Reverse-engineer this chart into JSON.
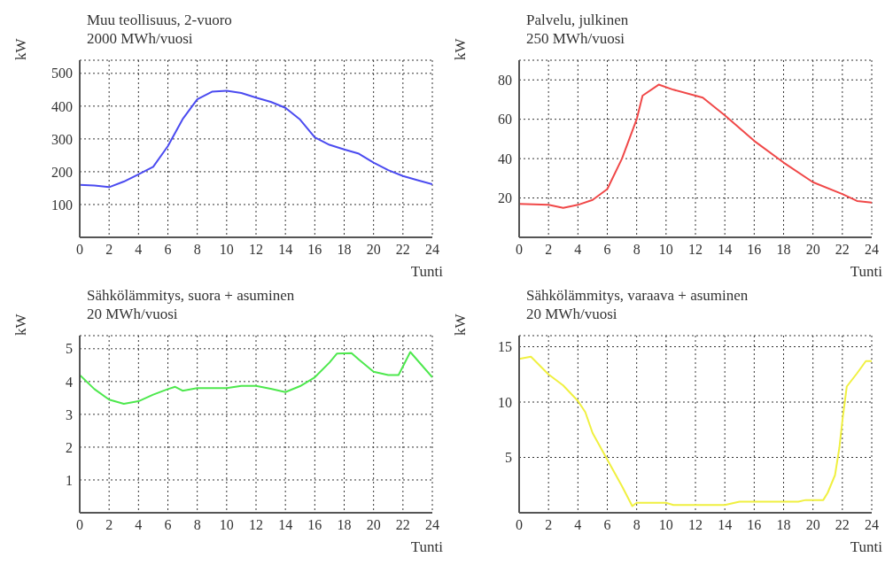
{
  "chart_data": [
    {
      "type": "line",
      "title": "Muu teollisuus, 2-vuoro",
      "subtitle": "2000 MWh/vuosi",
      "xlabel": "Tunti",
      "ylabel": "kW",
      "x": [
        0,
        1,
        2,
        3,
        4,
        5,
        6,
        7,
        8,
        9,
        10,
        11,
        12,
        13,
        14,
        15,
        16,
        17,
        18,
        19,
        20,
        21,
        22,
        23,
        24
      ],
      "series": [
        {
          "color": "#4b4bf0",
          "values": [
            160,
            158,
            153,
            170,
            192,
            215,
            278,
            360,
            421,
            444,
            447,
            440,
            426,
            413,
            395,
            359,
            305,
            282,
            268,
            255,
            228,
            205,
            187,
            174,
            162
          ]
        }
      ],
      "xlim": [
        0,
        24
      ],
      "xticks": [
        0,
        2,
        4,
        6,
        8,
        10,
        12,
        14,
        16,
        18,
        20,
        22,
        24
      ],
      "ylim": [
        0,
        540
      ],
      "yticks": [
        100,
        200,
        300,
        400,
        500
      ],
      "grid": true,
      "marker": "none",
      "line_style": "solid"
    },
    {
      "type": "line",
      "title": "Palvelu, julkinen",
      "subtitle": "250 MWh/vuosi",
      "xlabel": "Tunti",
      "ylabel": "kW",
      "x": [
        0,
        2,
        3,
        4,
        5,
        6,
        7,
        8,
        8.4,
        9.5,
        10.5,
        12,
        12.5,
        14,
        16,
        18,
        20,
        22,
        23,
        24
      ],
      "series": [
        {
          "color": "#f04848",
          "values": [
            17,
            16.5,
            15,
            16.5,
            19,
            24.5,
            40,
            60,
            72,
            77.6,
            75,
            72,
            71,
            62,
            49,
            38,
            28,
            22,
            18.5,
            17.7
          ]
        }
      ],
      "xlim": [
        0,
        24
      ],
      "xticks": [
        0,
        2,
        4,
        6,
        8,
        10,
        12,
        14,
        16,
        18,
        20,
        22,
        24
      ],
      "ylim": [
        0,
        90
      ],
      "yticks": [
        20,
        40,
        60,
        80
      ],
      "grid": true,
      "marker": "none",
      "line_style": "solid"
    },
    {
      "type": "line",
      "title": "Sähkölämmitys, suora + asuminen",
      "subtitle": "20 MWh/vuosi",
      "xlabel": "Tunti",
      "ylabel": "kW",
      "x": [
        0,
        1,
        2,
        3,
        4,
        5,
        6,
        6.5,
        7,
        8,
        10,
        11,
        12,
        13,
        14,
        15,
        16,
        17,
        17.5,
        18.5,
        19,
        20,
        21,
        21.7,
        22.5,
        24
      ],
      "series": [
        {
          "color": "#4de84d",
          "values": [
            4.2,
            3.77,
            3.45,
            3.32,
            3.4,
            3.6,
            3.77,
            3.84,
            3.72,
            3.8,
            3.8,
            3.87,
            3.87,
            3.78,
            3.68,
            3.86,
            4.13,
            4.58,
            4.85,
            4.87,
            4.67,
            4.3,
            4.2,
            4.2,
            4.9,
            4.13
          ]
        }
      ],
      "xlim": [
        0,
        24
      ],
      "xticks": [
        0,
        2,
        4,
        6,
        8,
        10,
        12,
        14,
        16,
        18,
        20,
        22,
        24
      ],
      "ylim": [
        0,
        5.4
      ],
      "yticks": [
        1,
        2,
        3,
        4,
        5
      ],
      "grid": true,
      "marker": "none",
      "line_style": "solid"
    },
    {
      "type": "line",
      "title": "Sähkölämmitys, varaava + asuminen",
      "subtitle": "20 MWh/vuosi",
      "xlabel": "Tunti",
      "ylabel": "kW",
      "x": [
        0,
        0.8,
        2,
        3,
        4,
        4.5,
        5,
        6,
        7,
        7.7,
        8,
        10,
        10.5,
        14,
        15,
        16,
        19,
        19.5,
        20.7,
        21,
        21.5,
        21.8,
        22,
        22.3,
        23,
        23.6,
        24
      ],
      "series": [
        {
          "color": "#f0f040",
          "values": [
            13.9,
            14.1,
            12.5,
            11.5,
            10.1,
            9.1,
            7.2,
            4.8,
            2.4,
            0.6,
            0.9,
            0.9,
            0.7,
            0.7,
            1,
            1,
            1,
            1.15,
            1.15,
            1.8,
            3.4,
            5.9,
            8.3,
            11.4,
            12.6,
            13.7,
            13.7
          ]
        }
      ],
      "xlim": [
        0,
        24
      ],
      "xticks": [
        0,
        2,
        4,
        6,
        8,
        10,
        12,
        14,
        16,
        18,
        20,
        22,
        24
      ],
      "ylim": [
        0,
        16
      ],
      "yticks": [
        5,
        10,
        15
      ],
      "grid": true,
      "marker": "none",
      "line_style": "solid"
    }
  ]
}
